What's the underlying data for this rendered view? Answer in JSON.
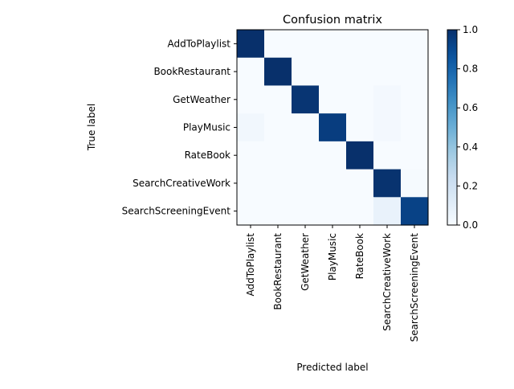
{
  "chart_data": {
    "type": "heatmap",
    "title": "Confusion matrix",
    "xlabel": "Predicted label",
    "ylabel": "True label",
    "x_categories": [
      "AddToPlaylist",
      "BookRestaurant",
      "GetWeather",
      "PlayMusic",
      "RateBook",
      "SearchCreativeWork",
      "SearchScreeningEvent"
    ],
    "y_categories": [
      "AddToPlaylist",
      "BookRestaurant",
      "GetWeather",
      "PlayMusic",
      "RateBook",
      "SearchCreativeWork",
      "SearchScreeningEvent"
    ],
    "matrix": [
      [
        1.0,
        0.0,
        0.0,
        0.0,
        0.0,
        0.0,
        0.0
      ],
      [
        0.0,
        1.0,
        0.0,
        0.0,
        0.0,
        0.0,
        0.0
      ],
      [
        0.0,
        0.0,
        0.98,
        0.0,
        0.0,
        0.02,
        0.0
      ],
      [
        0.03,
        0.0,
        0.0,
        0.95,
        0.0,
        0.02,
        0.0
      ],
      [
        0.0,
        0.0,
        0.0,
        0.0,
        1.0,
        0.0,
        0.0
      ],
      [
        0.0,
        0.0,
        0.0,
        0.0,
        0.0,
        0.99,
        0.01
      ],
      [
        0.0,
        0.0,
        0.0,
        0.0,
        0.0,
        0.07,
        0.93
      ]
    ],
    "colormap": "Blues",
    "colorbar": {
      "range": [
        0.0,
        1.0
      ],
      "ticks": [
        0.0,
        0.2,
        0.4,
        0.6,
        0.8,
        1.0
      ],
      "tick_labels": [
        "0.0",
        "0.2",
        "0.4",
        "0.6",
        "0.8",
        "1.0"
      ]
    },
    "grid": false
  }
}
